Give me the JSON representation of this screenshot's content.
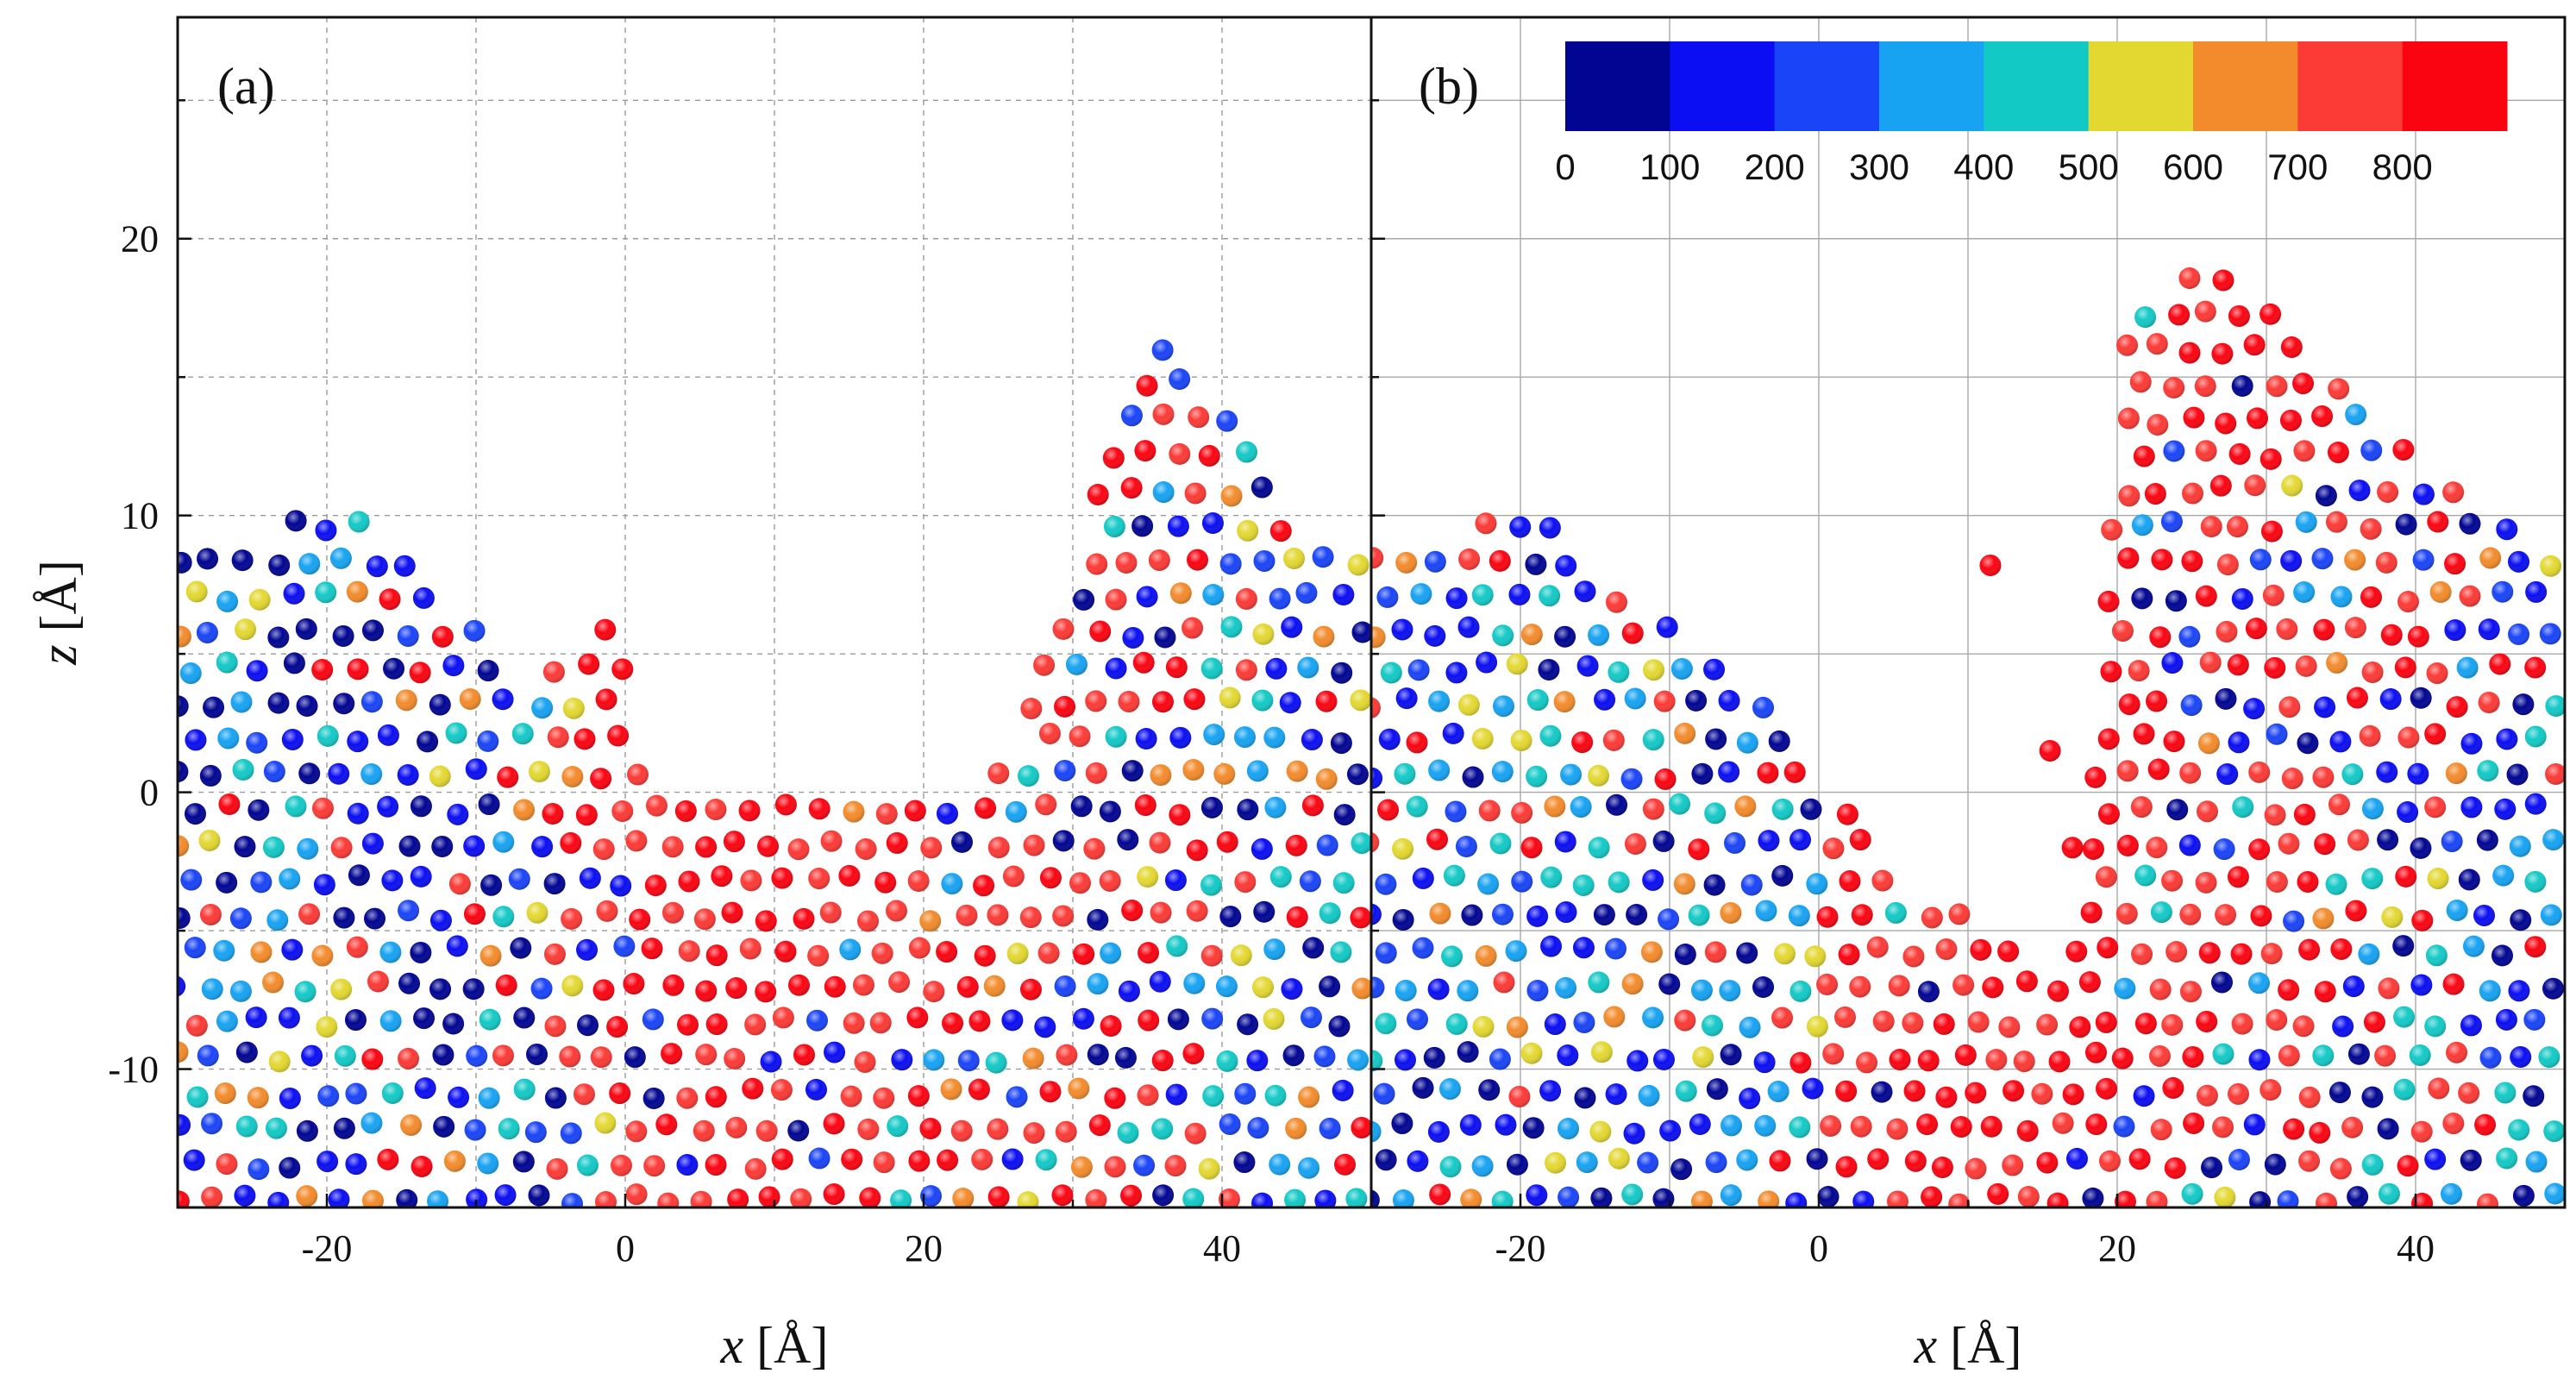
{
  "chart_data": [
    {
      "type": "scatter",
      "panel_label": "(a)",
      "xlabel_var": "x",
      "xlabel_unit": " [Å]",
      "ylabel_var": "z",
      "ylabel_unit": " [Å]",
      "xlim": [
        -30,
        50
      ],
      "ylim": [
        -15,
        28
      ],
      "xticks": [
        -20,
        0,
        20,
        40
      ],
      "yticks": [
        -10,
        0,
        10,
        20
      ],
      "xtick_labels": [
        "-20",
        "0",
        "20",
        "40"
      ],
      "ytick_labels": [
        "-10",
        "0",
        "10",
        "20"
      ],
      "grid": "dashed",
      "surface_profile_x": [
        -30,
        -25,
        -22,
        -18,
        -14,
        -10,
        -6,
        -3,
        -1,
        2,
        6,
        10,
        14,
        18,
        22,
        26,
        29,
        32,
        35,
        38,
        41,
        44,
        47,
        50
      ],
      "surface_profile_z": [
        9,
        9,
        10,
        10,
        8,
        6,
        4,
        5.5,
        6,
        1,
        0,
        -0.5,
        0,
        0.5,
        0,
        2,
        6,
        12,
        16.5,
        15,
        13,
        10,
        9,
        8
      ],
      "red_zone": {
        "x_range": [
          -5,
          40
        ],
        "rough_center_x": 6,
        "valley_depth_z": -15
      }
    },
    {
      "type": "scatter",
      "panel_label": "(b)",
      "xlabel_var": "x",
      "xlabel_unit": " [Å]",
      "xlim": [
        -30,
        50
      ],
      "ylim": [
        -15,
        28
      ],
      "xticks": [
        -20,
        0,
        20,
        40
      ],
      "xtick_labels": [
        "-20",
        "0",
        "20",
        "40"
      ],
      "grid": "solid",
      "surface_profile_x": [
        -30,
        -25,
        -22,
        -18,
        -14,
        -10,
        -6,
        -3,
        0,
        4,
        8,
        12,
        15,
        18,
        20,
        22,
        25,
        28,
        31,
        34,
        38,
        42,
        46,
        50
      ],
      "surface_profile_z": [
        9,
        9,
        10,
        10,
        8,
        6,
        5,
        3,
        1,
        -2,
        -4,
        -5,
        -6,
        -4,
        16,
        18,
        19,
        19,
        18,
        15,
        13,
        11,
        10,
        9
      ],
      "red_zone": {
        "x_range": [
          0,
          45
        ],
        "rough_center_x": 14,
        "valley_depth_z": -15
      },
      "ejected_atoms": [
        {
          "x": 11.5,
          "z": 8.2
        },
        {
          "x": 15.5,
          "z": 1.5
        },
        {
          "x": 17,
          "z": -2
        }
      ]
    }
  ],
  "colorbar": {
    "colors": [
      "#010592",
      "#0b0ef2",
      "#1a44f7",
      "#17a3f2",
      "#13c9c6",
      "#e3d831",
      "#f38b2c",
      "#fc3a36",
      "#fb0411"
    ],
    "tick_labels": [
      "0",
      "100",
      "200",
      "300",
      "400",
      "500",
      "600",
      "700",
      "800"
    ]
  }
}
